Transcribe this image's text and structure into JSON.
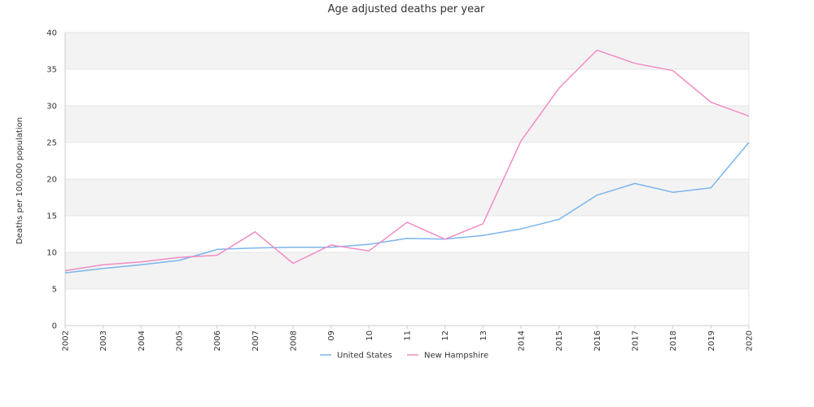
{
  "chart_data": {
    "type": "line",
    "title": "Age adjusted deaths per year",
    "xlabel": "",
    "ylabel": "Deaths per 100,000 population",
    "categories": [
      "2002",
      "2003",
      "2004",
      "2005",
      "2006",
      "2007",
      "2008",
      "09",
      "10",
      "11",
      "12",
      "13",
      "2014",
      "2015",
      "2016",
      "2017",
      "2018",
      "2019",
      "2020"
    ],
    "ylim": [
      0,
      40
    ],
    "yticks": [
      0,
      5,
      10,
      15,
      20,
      25,
      30,
      35,
      40
    ],
    "grid": "horizontal bands",
    "legend": "bottom",
    "series": [
      {
        "name": "United States",
        "color": "#7cb5ec",
        "values": [
          7.2,
          7.8,
          8.3,
          8.9,
          10.4,
          10.6,
          10.7,
          10.7,
          11.1,
          11.9,
          11.8,
          12.3,
          13.2,
          14.5,
          17.8,
          19.4,
          18.2,
          18.8,
          25.0
        ]
      },
      {
        "name": "New Hampshire",
        "color": "#f28cc4",
        "values": [
          7.5,
          8.3,
          8.7,
          9.3,
          9.6,
          12.8,
          8.5,
          11.0,
          10.2,
          14.1,
          11.8,
          13.9,
          25.2,
          32.4,
          37.6,
          35.8,
          34.8,
          30.5,
          28.6
        ]
      }
    ]
  },
  "colors": {
    "band": "#f3f3f3",
    "grid": "#e6e6e6",
    "axis": "#cccccc"
  }
}
